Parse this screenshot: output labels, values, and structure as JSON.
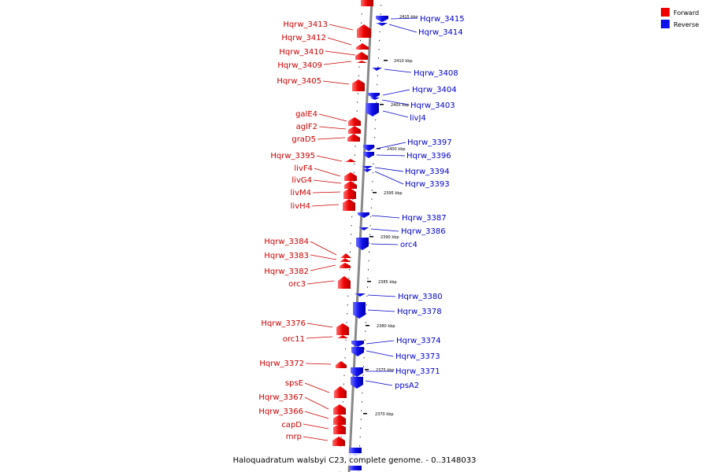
{
  "caption": "Haloquadratum walsbyi C23, complete genome. - 0..3148033",
  "legend": [
    {
      "label": "Forward",
      "color": "#ee0000"
    },
    {
      "label": "Reverse",
      "color": "#1010ee"
    }
  ],
  "kbp_ticks": [
    {
      "label": "2415 kbp",
      "kbp": 2415
    },
    {
      "label": "2410 kbp",
      "kbp": 2410
    },
    {
      "label": "2405 kbp",
      "kbp": 2405
    },
    {
      "label": "2400 kbp",
      "kbp": 2400
    },
    {
      "label": "2395 kbp",
      "kbp": 2395
    },
    {
      "label": "2390 kbp",
      "kbp": 2390
    },
    {
      "label": "2385 kbp",
      "kbp": 2385
    },
    {
      "label": "2380 kbp",
      "kbp": 2380
    },
    {
      "label": "2375 kbp",
      "kbp": 2375
    },
    {
      "label": "2370 kbp",
      "kbp": 2370
    }
  ],
  "forward_genes": [
    "Hqrw_3413",
    "Hqrw_3412",
    "Hqrw_3410",
    "Hqrw_3409",
    "Hqrw_3405",
    "galE4",
    "aglF2",
    "graD5",
    "Hqrw_3395",
    "livF4",
    "livG4",
    "livM4",
    "livH4",
    "Hqrw_3384",
    "Hqrw_3383",
    "Hqrw_3382",
    "orc3",
    "Hqrw_3376",
    "orc11",
    "Hqrw_3372",
    "spsE",
    "Hqrw_3367",
    "Hqrw_3366",
    "capD",
    "mrp"
  ],
  "reverse_genes": [
    "Hqrw_3415",
    "Hqrw_3414",
    "Hqrw_3408",
    "Hqrw_3404",
    "Hqrw_3403",
    "livJ4",
    "Hqrw_3397",
    "Hqrw_3396",
    "Hqrw_3394",
    "Hqrw_3393",
    "Hqrw_3387",
    "Hqrw_3386",
    "orc4",
    "Hqrw_3380",
    "Hqrw_3378",
    "Hqrw_3374",
    "Hqrw_3373",
    "Hqrw_3371",
    "ppsA2"
  ]
}
